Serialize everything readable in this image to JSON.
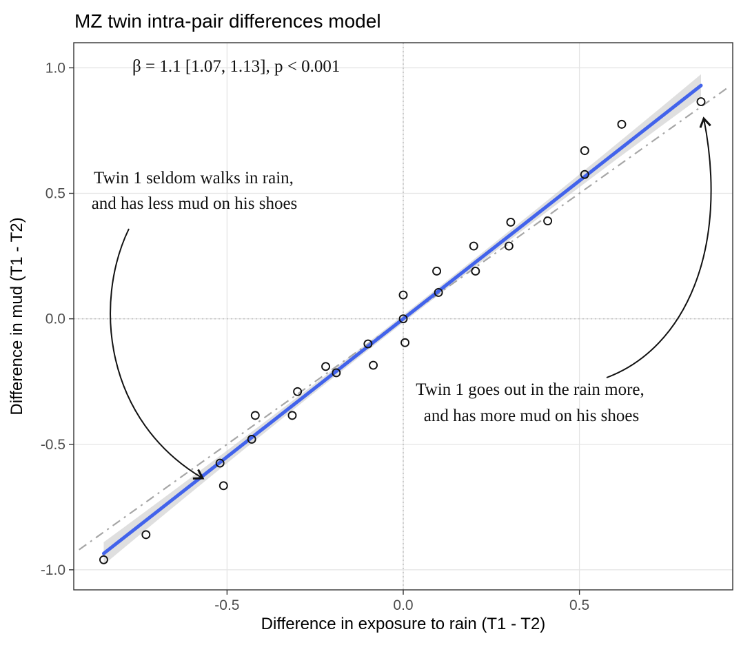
{
  "chart_data": {
    "type": "scatter",
    "title": "MZ twin intra-pair differences model",
    "xlabel": "Difference in exposure to rain (T1 - T2)",
    "ylabel": "Difference in mud (T1 - T2)",
    "stats_label": "β = 1.1 [1.07, 1.13], p < 0.001",
    "xlim": [
      -0.935,
      0.935
    ],
    "ylim": [
      -1.08,
      1.1
    ],
    "x_ticks": [
      -0.5,
      0.0,
      0.5
    ],
    "x_tick_labels": [
      "-0.5",
      "0.0",
      "0.5"
    ],
    "y_ticks": [
      -1.0,
      -0.5,
      0.0,
      0.5,
      1.0
    ],
    "y_tick_labels": [
      "-1.0",
      "-0.5",
      "0.0",
      "0.5",
      "1.0"
    ],
    "grid": true,
    "zero_lines_dotted": true,
    "points": [
      [
        -0.85,
        -0.96
      ],
      [
        -0.73,
        -0.86
      ],
      [
        -0.52,
        -0.575
      ],
      [
        -0.51,
        -0.665
      ],
      [
        -0.43,
        -0.48
      ],
      [
        -0.42,
        -0.385
      ],
      [
        -0.315,
        -0.385
      ],
      [
        -0.3,
        -0.29
      ],
      [
        -0.22,
        -0.19
      ],
      [
        -0.19,
        -0.215
      ],
      [
        -0.1,
        -0.1
      ],
      [
        -0.085,
        -0.185
      ],
      [
        0.0,
        0.095
      ],
      [
        0.0,
        0.0
      ],
      [
        0.005,
        -0.095
      ],
      [
        0.1,
        0.105
      ],
      [
        0.095,
        0.19
      ],
      [
        0.205,
        0.19
      ],
      [
        0.2,
        0.29
      ],
      [
        0.3,
        0.29
      ],
      [
        0.305,
        0.385
      ],
      [
        0.41,
        0.39
      ],
      [
        0.515,
        0.575
      ],
      [
        0.515,
        0.67
      ],
      [
        0.62,
        0.775
      ],
      [
        0.845,
        0.865
      ]
    ],
    "regression": {
      "slope": 1.1,
      "intercept": 0.0,
      "x_range": [
        -0.85,
        0.845
      ],
      "beta": 1.1,
      "ci_low": 1.07,
      "ci_high": 1.13,
      "p": "< 0.001"
    },
    "band": {
      "center_halfwidth": 0.015,
      "edge_halfwidth": 0.045
    },
    "identity_line": {
      "slope": 1.0,
      "intercept": 0.0,
      "x_range": [
        -0.92,
        0.92
      ],
      "style": "dash-dot"
    },
    "annotations": {
      "left": {
        "lines": [
          "Twin 1 seldom walks in rain,",
          "and has less mud on his shoes"
        ]
      },
      "right": {
        "lines": [
          "Twin 1 goes out in the rain more,",
          "and has more mud on his shoes"
        ]
      }
    }
  },
  "colors": {
    "regression_line": "#4263EB",
    "confidence_band": "#c9c9c9",
    "identity_line": "#a6a6a6",
    "grid_major": "#e4e4e4",
    "grid_zero_dotted": "#bdbdbd",
    "point_stroke": "#111111",
    "panel_border": "#333333",
    "tick_label": "#4d4d4d",
    "arrow": "#111111"
  }
}
